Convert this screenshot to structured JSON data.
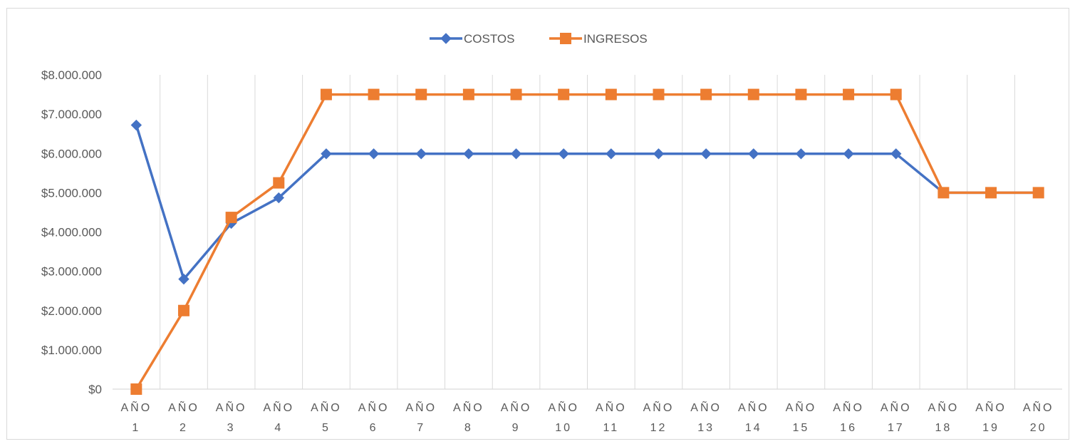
{
  "chart_data": {
    "type": "line",
    "categories": [
      [
        "AÑO",
        "1"
      ],
      [
        "AÑO",
        "2"
      ],
      [
        "AÑO",
        "3"
      ],
      [
        "AÑO",
        "4"
      ],
      [
        "AÑO",
        "5"
      ],
      [
        "AÑO",
        "6"
      ],
      [
        "AÑO",
        "7"
      ],
      [
        "AÑO",
        "8"
      ],
      [
        "AÑO",
        "9"
      ],
      [
        "AÑO",
        "10"
      ],
      [
        "AÑO",
        "11"
      ],
      [
        "AÑO",
        "12"
      ],
      [
        "AÑO",
        "13"
      ],
      [
        "AÑO",
        "14"
      ],
      [
        "AÑO",
        "15"
      ],
      [
        "AÑO",
        "16"
      ],
      [
        "AÑO",
        "17"
      ],
      [
        "AÑO",
        "18"
      ],
      [
        "AÑO",
        "19"
      ],
      [
        "AÑO",
        "20"
      ]
    ],
    "series": [
      {
        "name": "COSTOS",
        "color": "#4472c4",
        "marker": "diamond",
        "values": [
          6720000,
          2800000,
          4220000,
          4870000,
          5990000,
          5990000,
          5990000,
          5990000,
          5990000,
          5990000,
          5990000,
          5990000,
          5990000,
          5990000,
          5990000,
          5990000,
          5990000,
          5000000,
          5000000,
          5000000
        ]
      },
      {
        "name": "INGRESOS",
        "color": "#ed7d31",
        "marker": "square",
        "values": [
          0,
          2000000,
          4370000,
          5250000,
          7500000,
          7500000,
          7500000,
          7500000,
          7500000,
          7500000,
          7500000,
          7500000,
          7500000,
          7500000,
          7500000,
          7500000,
          7500000,
          5000000,
          5000000,
          5000000
        ]
      }
    ],
    "y_ticks": [
      "$0",
      "$1.000.000",
      "$2.000.000",
      "$3.000.000",
      "$4.000.000",
      "$5.000.000",
      "$6.000.000",
      "$7.000.000",
      "$8.000.000"
    ],
    "ylim": [
      0,
      8000000
    ],
    "y_step": 1000000,
    "title": "",
    "xlabel": "",
    "ylabel": "",
    "grid": "vertical",
    "legend": "top-center",
    "colors": {
      "gridline": "#d9d9d9",
      "axis": "#d9d9d9",
      "text": "#595959"
    }
  }
}
